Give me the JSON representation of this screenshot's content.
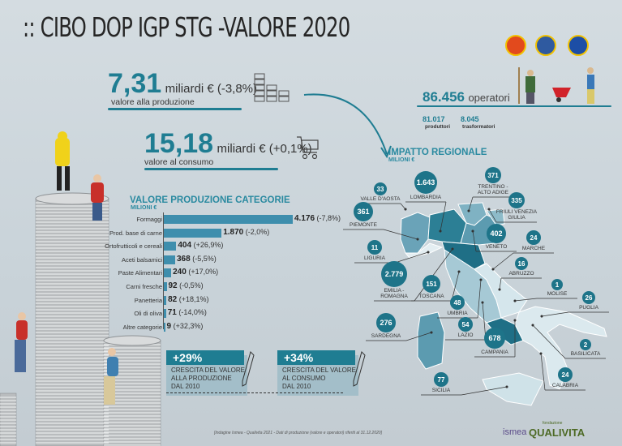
{
  "header": {
    "title": ":: CIBO DOP IGP STG -VALORE 2020",
    "seals": [
      "dop-seal",
      "igp-seal",
      "stg-seal"
    ]
  },
  "production": {
    "value": "7,31",
    "unit": "miliardi € (-3,8%)",
    "label": "valore alla produzione"
  },
  "consumption": {
    "value": "15,18",
    "unit": "miliardi € (+0,1%)",
    "label": "valore al consumo"
  },
  "operators": {
    "value": "86.456",
    "unit": "operatori",
    "producers_value": "81.017",
    "producers_label": "produttori",
    "processors_value": "8.045",
    "processors_label": "trasformatori"
  },
  "chart_data": [
    {
      "type": "bar",
      "orientation": "horizontal",
      "title": "VALORE PRODUZIONE CATEGORIE",
      "subtitle": "MILIONI €",
      "categories": [
        "Formaggi",
        "Prod. base di carne",
        "Ortofrutticoli e cereali",
        "Aceti balsamici",
        "Paste Alimentari",
        "Carni fresche",
        "Panetteria",
        "Oli di oliva",
        "Altre categorie"
      ],
      "values": [
        4176,
        1870,
        404,
        368,
        240,
        92,
        82,
        71,
        9
      ],
      "value_labels": [
        "4.176",
        "1.870",
        "404",
        "368",
        "240",
        "92",
        "82",
        "71",
        "9"
      ],
      "changes": [
        "(-7,8%)",
        "(-2,0%)",
        "(+26,9%)",
        "(-5,5%)",
        "(+17,0%)",
        "(-0,5%)",
        "(+18,1%)",
        "(-14,0%)",
        "(+32,3%)"
      ],
      "color": "#3e8ead"
    }
  ],
  "regional": {
    "title": "IMPATTO REGIONALE",
    "subtitle": "MILIONI €",
    "regions": [
      {
        "name": "VALLE D'AOSTA",
        "value": "33"
      },
      {
        "name": "LOMBARDIA",
        "value": "1.643"
      },
      {
        "name": "PIEMONTE",
        "value": "361"
      },
      {
        "name": "TRENTINO -\nALTO ADIGE",
        "value": "371"
      },
      {
        "name": "FRIULI VENEZIA\nGIULIA",
        "value": "335"
      },
      {
        "name": "VENETO",
        "value": "402"
      },
      {
        "name": "MARCHE",
        "value": "24"
      },
      {
        "name": "LIGURIA",
        "value": "11"
      },
      {
        "name": "ABRUZZO",
        "value": "16"
      },
      {
        "name": "EMILIA -\nROMAGNA",
        "value": "2.779"
      },
      {
        "name": "TOSCANA",
        "value": "151"
      },
      {
        "name": "MOLISE",
        "value": "1"
      },
      {
        "name": "PUGLIA",
        "value": "26"
      },
      {
        "name": "UMBRIA",
        "value": "48"
      },
      {
        "name": "LAZIO",
        "value": "54"
      },
      {
        "name": "SARDEGNA",
        "value": "276"
      },
      {
        "name": "CAMPANIA",
        "value": "678"
      },
      {
        "name": "BASILICATA",
        "value": "2"
      },
      {
        "name": "CALABRIA",
        "value": "24"
      },
      {
        "name": "SICILIA",
        "value": "77"
      }
    ],
    "accent": "#1e7489"
  },
  "growth": [
    {
      "pct": "+29%",
      "line1": "CRESCITA DEL VALORE",
      "line2": "ALLA PRODUZIONE",
      "line3": "DAL 2010"
    },
    {
      "pct": "+34%",
      "line1": "CRESCITA DEL VALORE",
      "line2": "AL CONSUMO",
      "line3": "DAL 2010"
    }
  ],
  "footer": {
    "source": "[Indagine Ismea - Qualivita 2021 - Dati di produzione (valore e operatori) riferiti al 31.12.2020]",
    "logo1": "ismea",
    "logo2_small": "fondazione",
    "logo2": "QUALIVITA"
  }
}
